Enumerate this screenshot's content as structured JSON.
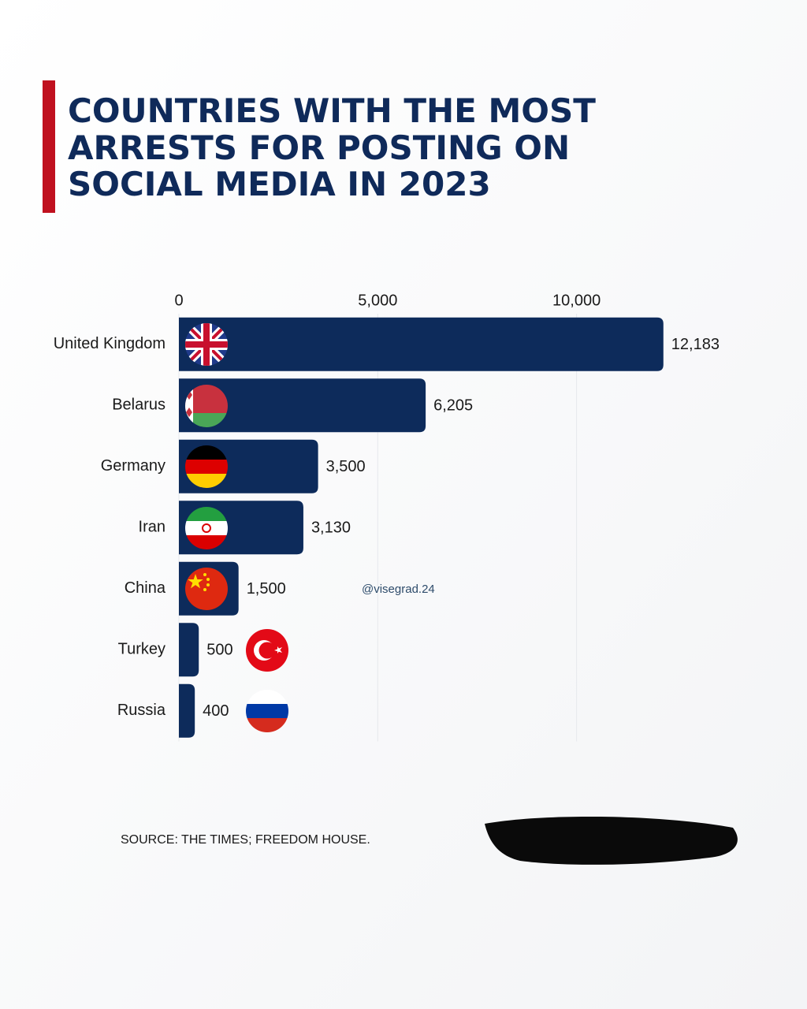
{
  "chart_data": {
    "type": "bar",
    "orientation": "horizontal",
    "title": [
      "COUNTRIES WITH THE MOST",
      "ARRESTS FOR POSTING ON",
      "SOCIAL MEDIA IN 2023"
    ],
    "categories": [
      "United Kingdom",
      "Belarus",
      "Germany",
      "Iran",
      "China",
      "Turkey",
      "Russia"
    ],
    "values": [
      12183,
      6205,
      3500,
      3130,
      1500,
      500,
      400
    ],
    "value_labels": [
      "12,183",
      "6,205",
      "3,500",
      "3,130",
      "1,500",
      "500",
      "400"
    ],
    "color": "#0d2b5b",
    "xlim": [
      0,
      13000
    ],
    "xticks": [
      0,
      {
        "value": 5000,
        "label": "5,000"
      },
      {
        "value": 10000,
        "label": "10,000"
      }
    ],
    "grid": true,
    "watermark": "@visegrad.24",
    "source": "SOURCE: THE TIMES; FREEDOM HOUSE."
  }
}
